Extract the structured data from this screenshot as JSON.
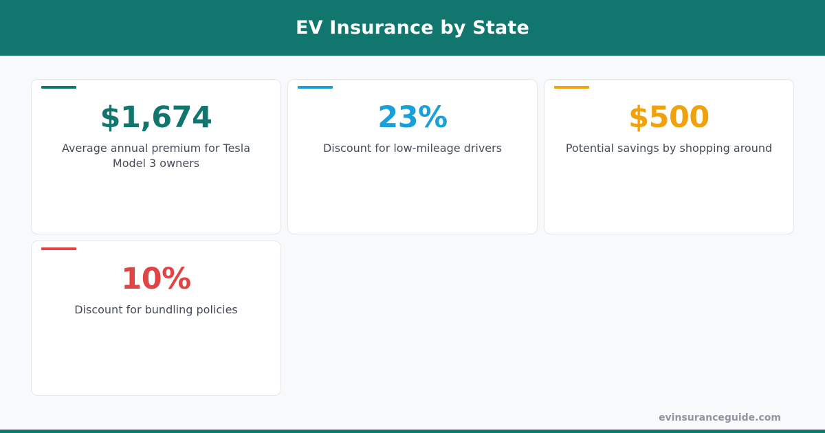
{
  "header": {
    "title": "EV Insurance by State"
  },
  "stats": [
    {
      "value": "$1,674",
      "description": "Average annual premium for Tesla Model 3 owners",
      "color": "#10766e"
    },
    {
      "value": "23%",
      "description": "Discount for low-mileage drivers",
      "color": "#1aa0d8"
    },
    {
      "value": "$500",
      "description": "Potential savings by shopping around",
      "color": "#f0a10e"
    },
    {
      "value": "10%",
      "description": "Discount for bundling policies",
      "color": "#e04444"
    }
  ],
  "footer": {
    "site": "evinsuranceguide.com"
  }
}
